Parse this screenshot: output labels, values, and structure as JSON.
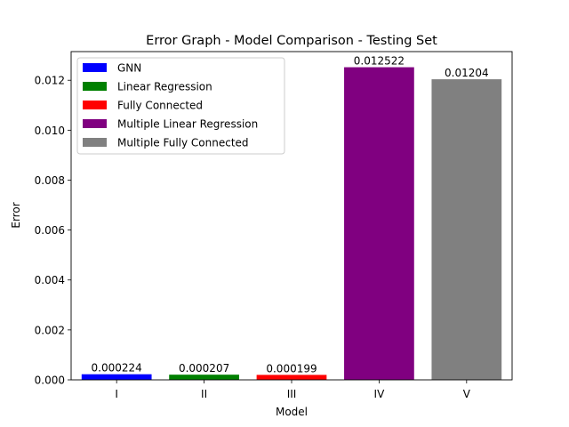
{
  "chart_data": {
    "type": "bar",
    "title": "Error Graph - Model Comparison - Testing Set",
    "xlabel": "Model",
    "ylabel": "Error",
    "categories": [
      "I",
      "II",
      "III",
      "IV",
      "V"
    ],
    "values": [
      0.000224,
      0.000207,
      0.000199,
      0.012522,
      0.01204
    ],
    "value_labels": [
      "0.000224",
      "0.000207",
      "0.000199",
      "0.012522",
      "0.01204"
    ],
    "colors": [
      "#0000ff",
      "#008000",
      "#ff0000",
      "#800080",
      "#808080"
    ],
    "series_names": [
      "GNN",
      "Linear Regression",
      "Fully Connected",
      "Multiple Linear Regression",
      "Multiple Fully Connected"
    ],
    "ylim": [
      0,
      0.013148
    ],
    "yticks": [
      0.0,
      0.002,
      0.004,
      0.006,
      0.008,
      0.01,
      0.012
    ],
    "ytick_labels": [
      "0.000",
      "0.002",
      "0.004",
      "0.006",
      "0.008",
      "0.010",
      "0.012"
    ],
    "grid": false,
    "legend_position": "top-left"
  }
}
